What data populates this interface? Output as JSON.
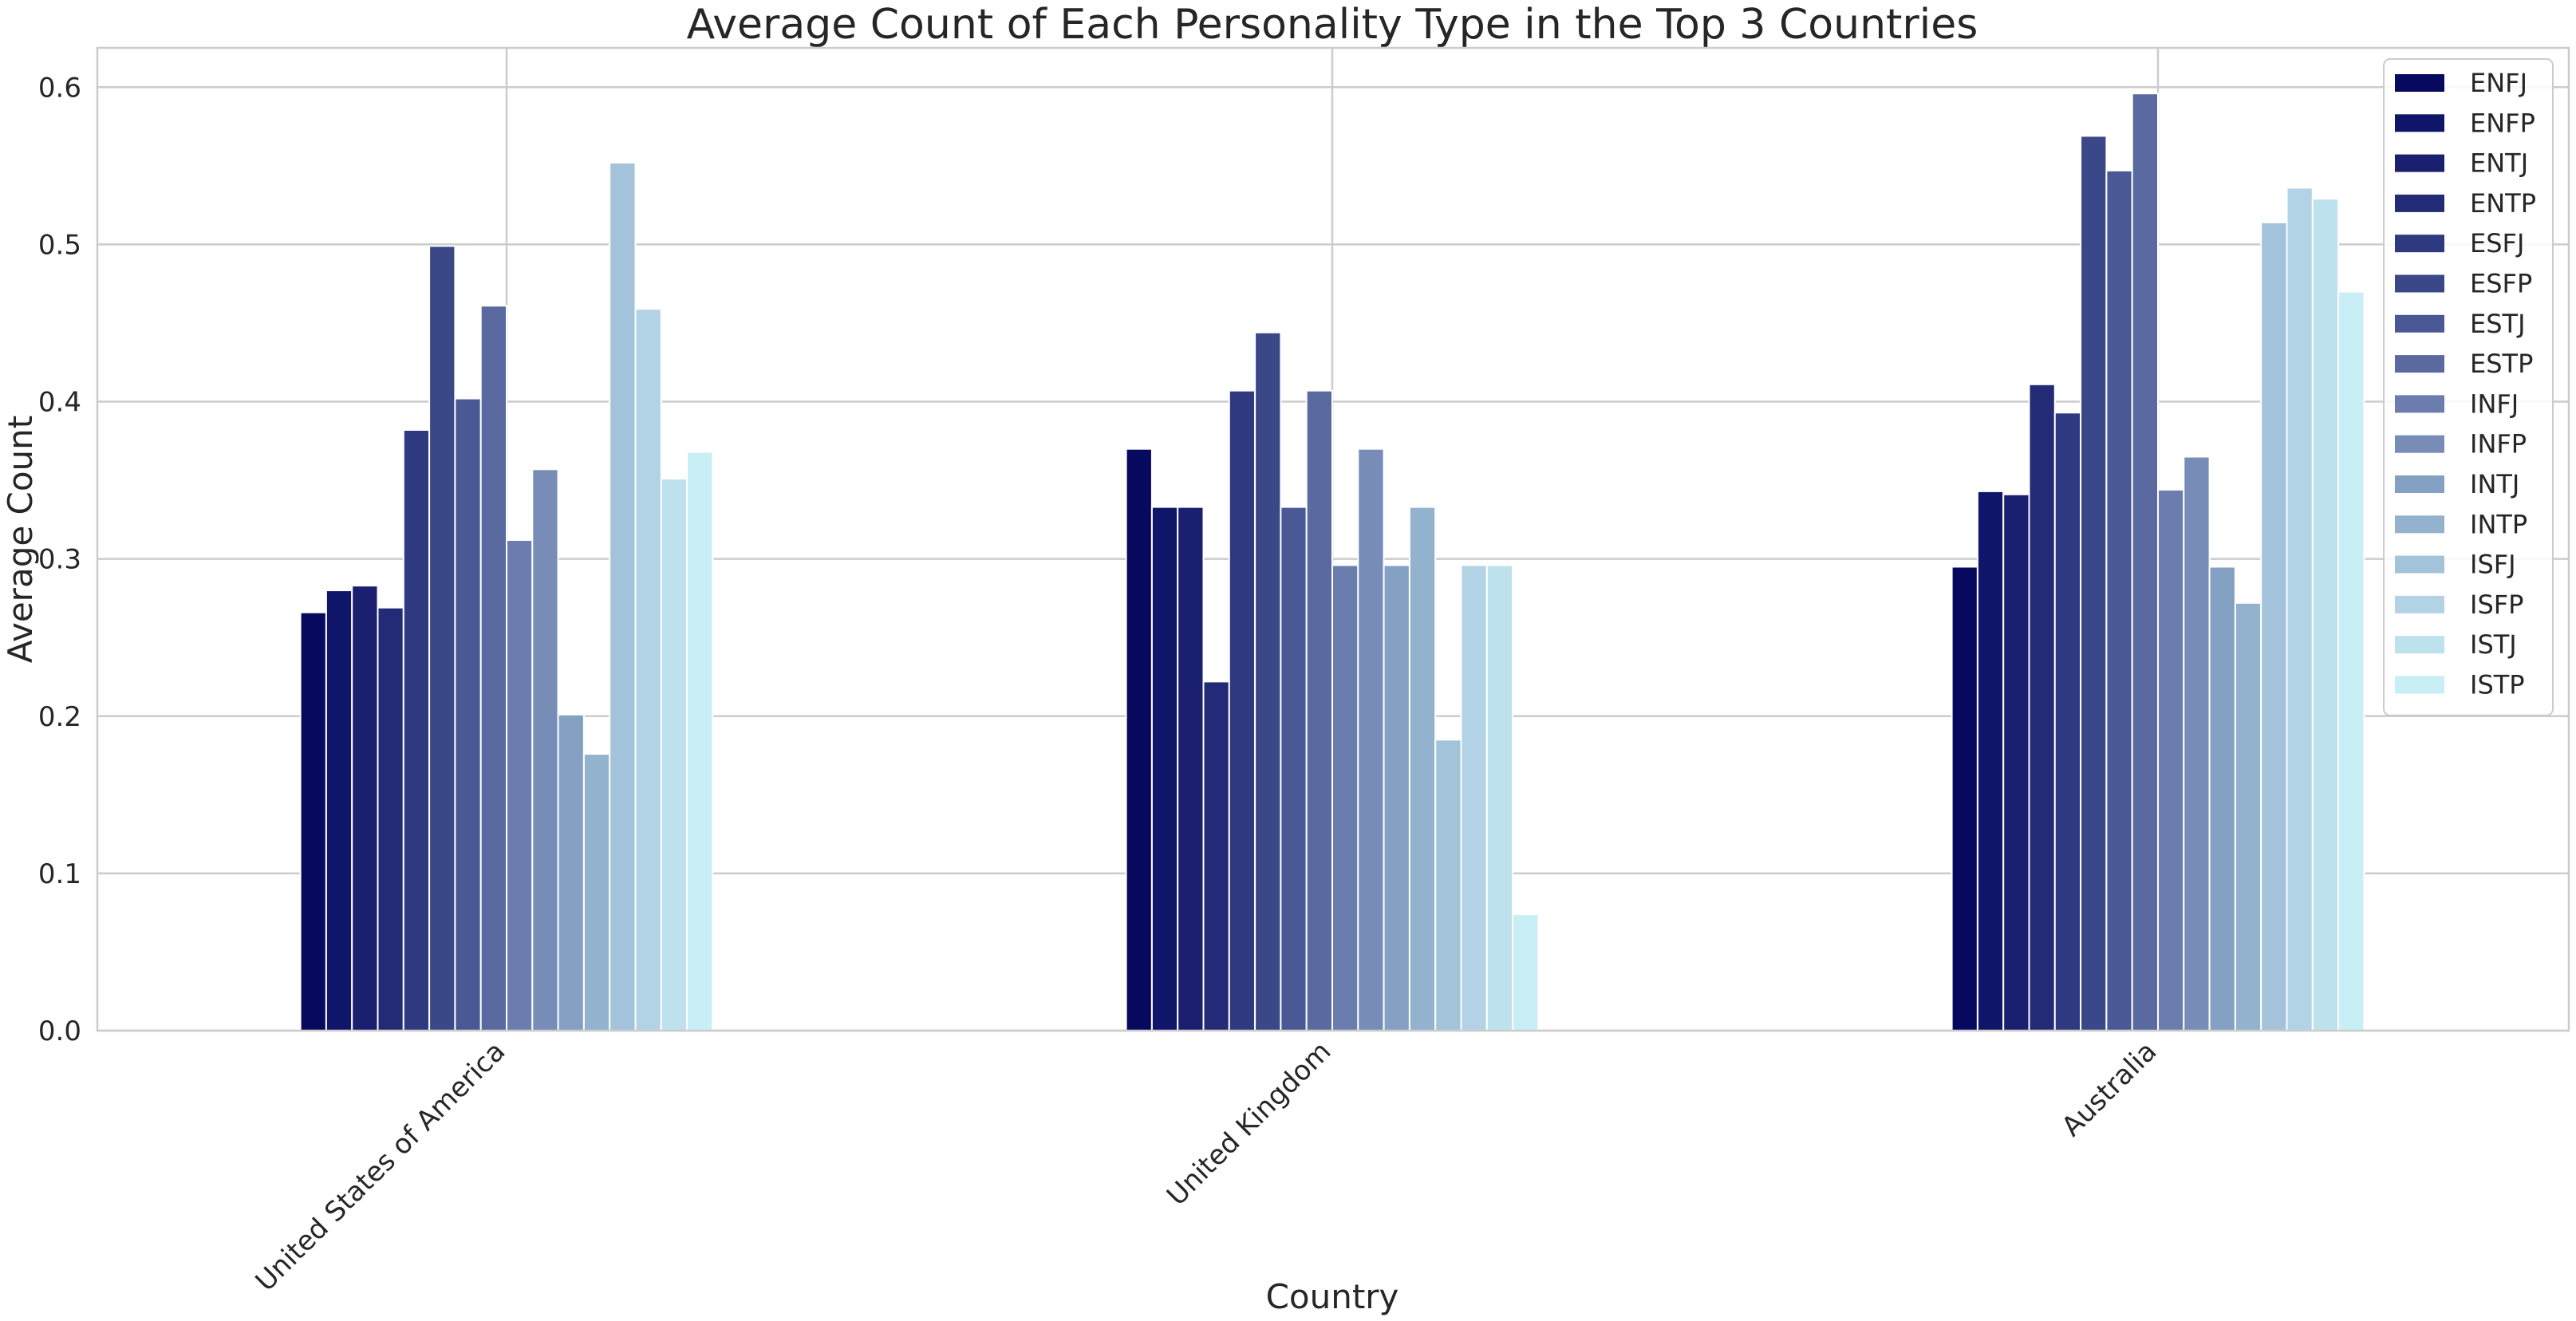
{
  "chart_data": {
    "type": "bar",
    "title": "Average Count of Each Personality Type in the Top 3 Countries",
    "xlabel": "Country",
    "ylabel": "Average Count",
    "ylim": [
      0,
      0.625
    ],
    "yticks": [
      "0.0",
      "0.1",
      "0.2",
      "0.3",
      "0.4",
      "0.5",
      "0.6"
    ],
    "grid": true,
    "legend_position": "top-right",
    "categories": [
      "United States of America",
      "United Kingdom",
      "Australia"
    ],
    "series": [
      {
        "name": "ENFJ",
        "color": "#07095e",
        "values": [
          0.266,
          0.37,
          0.295
        ]
      },
      {
        "name": "ENFP",
        "color": "#0f1568",
        "values": [
          0.28,
          0.333,
          0.343
        ]
      },
      {
        "name": "ENTJ",
        "color": "#1a1f70",
        "values": [
          0.283,
          0.333,
          0.341
        ]
      },
      {
        "name": "ENTP",
        "color": "#232b76",
        "values": [
          0.269,
          0.222,
          0.411
        ]
      },
      {
        "name": "ESFJ",
        "color": "#2e397f",
        "values": [
          0.382,
          0.407,
          0.393
        ]
      },
      {
        "name": "ESFP",
        "color": "#3b4888",
        "values": [
          0.499,
          0.444,
          0.569
        ]
      },
      {
        "name": "ESTJ",
        "color": "#4a5895",
        "values": [
          0.402,
          0.333,
          0.547
        ]
      },
      {
        "name": "ESTP",
        "color": "#5a69a0",
        "values": [
          0.461,
          0.407,
          0.596
        ]
      },
      {
        "name": "INFJ",
        "color": "#6a7dae",
        "values": [
          0.312,
          0.296,
          0.344
        ]
      },
      {
        "name": "INFP",
        "color": "#778db8",
        "values": [
          0.357,
          0.37,
          0.365
        ]
      },
      {
        "name": "INTJ",
        "color": "#84a0c2",
        "values": [
          0.201,
          0.296,
          0.295
        ]
      },
      {
        "name": "INTP",
        "color": "#93b2ce",
        "values": [
          0.176,
          0.333,
          0.272
        ]
      },
      {
        "name": "ISFJ",
        "color": "#a3c3da",
        "values": [
          0.552,
          0.185,
          0.514
        ]
      },
      {
        "name": "ISFP",
        "color": "#b2d3e5",
        "values": [
          0.459,
          0.296,
          0.536
        ]
      },
      {
        "name": "ISTJ",
        "color": "#bde2ed",
        "values": [
          0.351,
          0.296,
          0.529
        ]
      },
      {
        "name": "ISTP",
        "color": "#c8eef6",
        "values": [
          0.368,
          0.074,
          0.47
        ]
      }
    ]
  }
}
